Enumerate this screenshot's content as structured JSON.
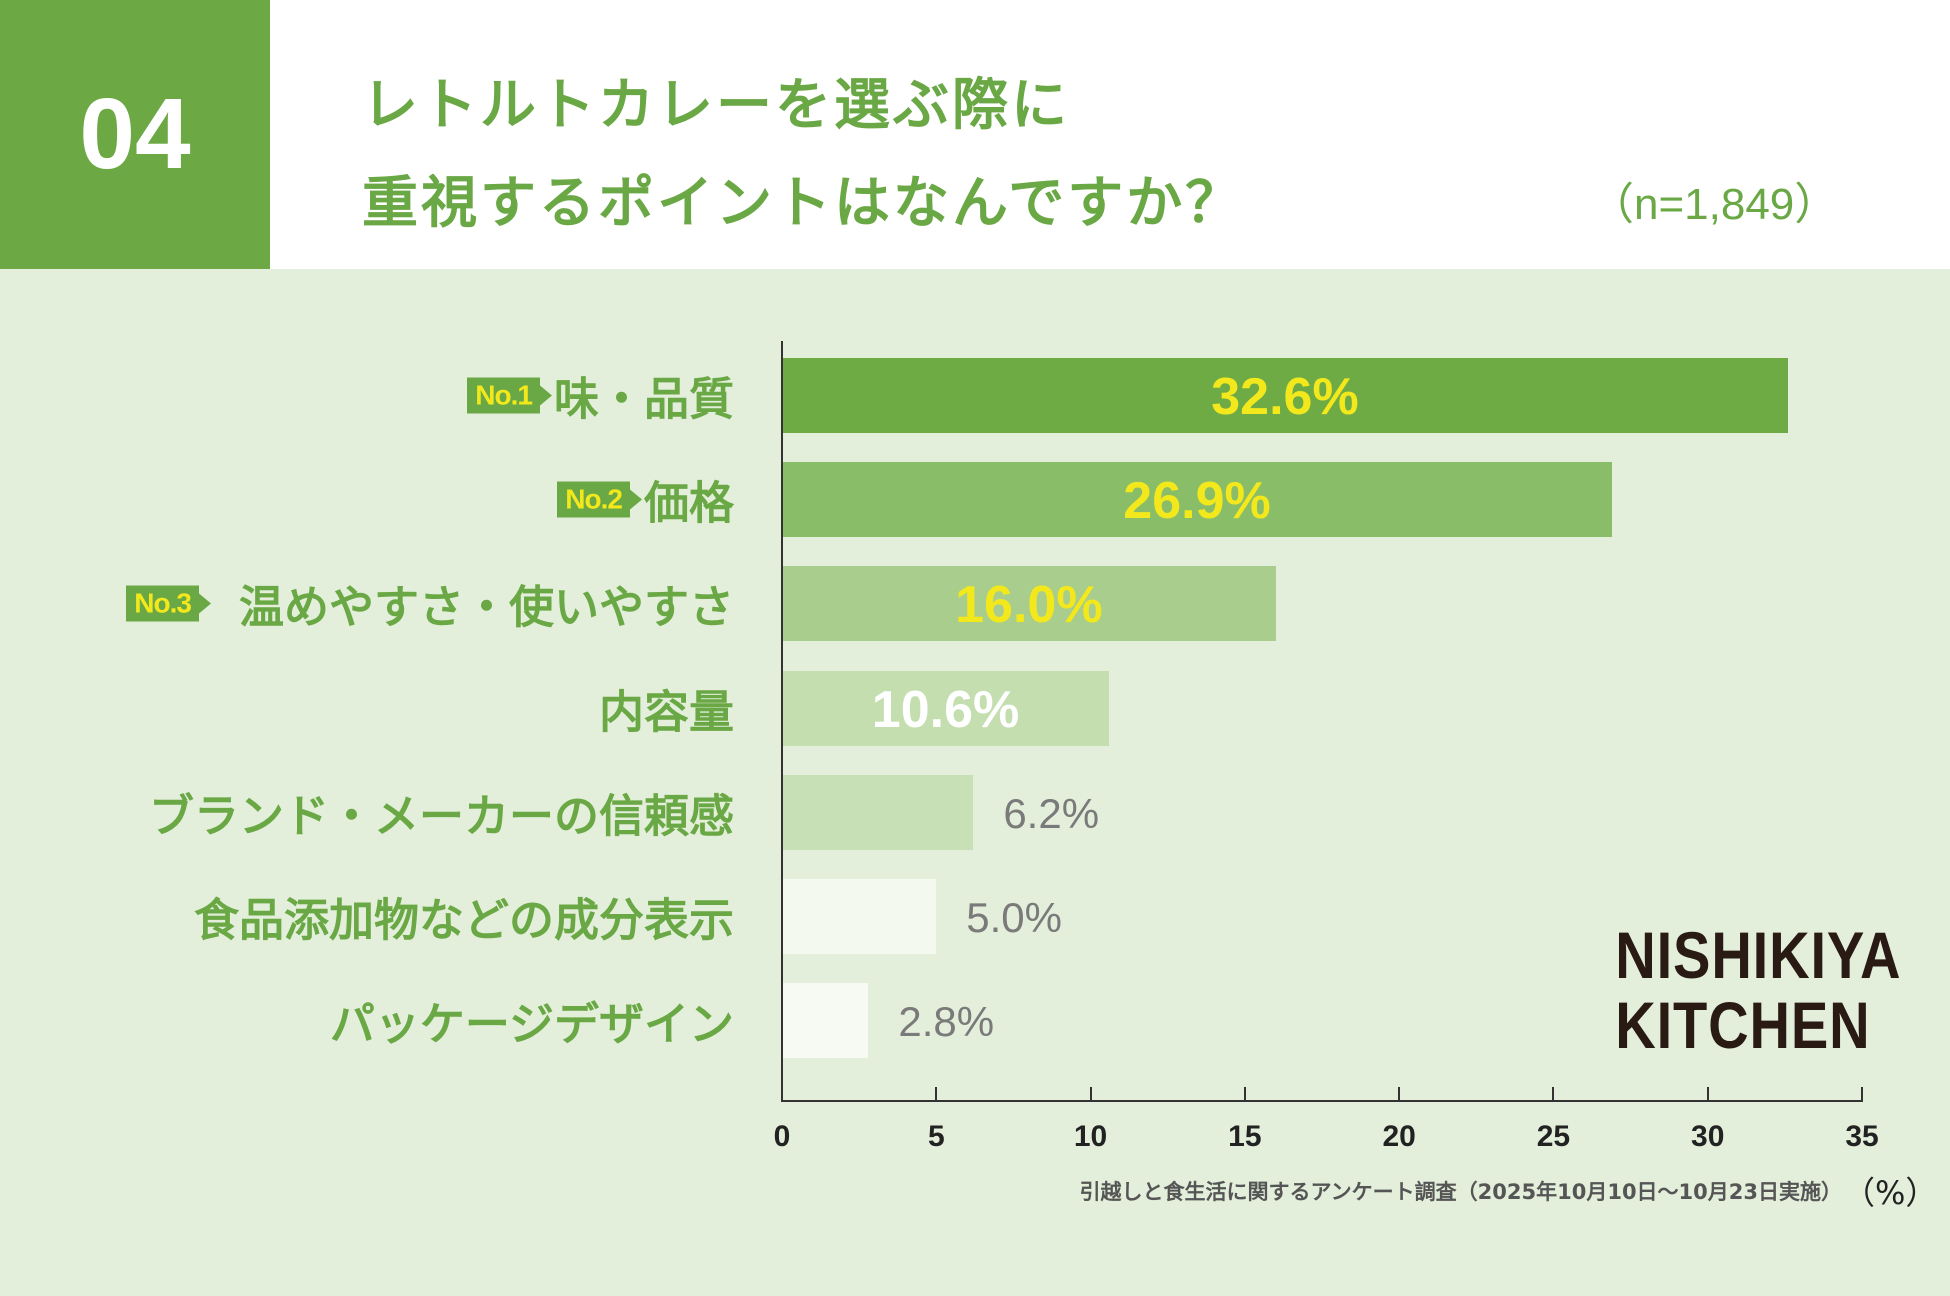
{
  "header": {
    "number": "04",
    "title_line1": "レトルトカレーを選ぶ際に",
    "title_line2": "重視するポイントはなんですか？",
    "sample": "（n=1,849）"
  },
  "chart_data": {
    "type": "bar",
    "orientation": "horizontal",
    "categories": [
      "味・品質",
      "価格",
      "温めやすさ・使いやすさ",
      "内容量",
      "ブランド・メーカーの信頼感",
      "食品添加物などの成分表示",
      "パッケージデザイン"
    ],
    "values": [
      32.6,
      26.9,
      16.0,
      10.6,
      6.2,
      5.0,
      2.8
    ],
    "value_labels": [
      "32.6%",
      "26.9%",
      "16.0%",
      "10.6%",
      "6.2%",
      "5.0%",
      "2.8%"
    ],
    "ranks": [
      "No.1",
      "No.2",
      "No.3"
    ],
    "xlim": [
      0,
      35
    ],
    "xticks": [
      "0",
      "5",
      "10",
      "15",
      "20",
      "25",
      "30",
      "35"
    ],
    "xunit": "（%）",
    "bar_colors": [
      "#6fab45",
      "#8abd68",
      "#a8cd8c",
      "#c4deb0",
      "#c8e0b6",
      "#f4f9f0",
      "#f6faf3"
    ],
    "label_colors": [
      "#f3e81c",
      "#f3e81c",
      "#f3e81c",
      "#ffffff",
      "#7a7a7a",
      "#7a7a7a",
      "#7a7a7a"
    ],
    "grid": false
  },
  "source": "引越しと食生活に関するアンケート調査（2025年10月10日〜10月23日実施）",
  "logo": {
    "line1": "NISHIKIYA",
    "line2": "KITCHEN"
  }
}
